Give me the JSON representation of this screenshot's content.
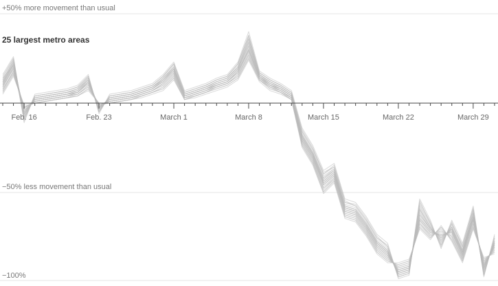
{
  "chart_data": {
    "type": "line",
    "title": "25 largest metro areas",
    "x_start": "2020-02-14",
    "x_end": "2020-03-31",
    "ylim": [
      -100,
      50
    ],
    "reference_lines": [
      {
        "value": 50,
        "label": "+50% more movement than usual"
      },
      {
        "value": -50,
        "label": "−50% less movement than usual"
      },
      {
        "value": -100,
        "label": "−100%"
      }
    ],
    "tick_labels": [
      {
        "date": "2020-02-16",
        "label": "Feb. 16"
      },
      {
        "date": "2020-02-23",
        "label": "Feb. 23"
      },
      {
        "date": "2020-03-01",
        "label": "March 1"
      },
      {
        "date": "2020-03-08",
        "label": "March 8"
      },
      {
        "date": "2020-03-15",
        "label": "March 15"
      },
      {
        "date": "2020-03-22",
        "label": "March 22"
      },
      {
        "date": "2020-03-29",
        "label": "March 29"
      }
    ],
    "dates": [
      "2020-02-14",
      "2020-02-15",
      "2020-02-16",
      "2020-02-17",
      "2020-02-18",
      "2020-02-19",
      "2020-02-20",
      "2020-02-21",
      "2020-02-22",
      "2020-02-23",
      "2020-02-24",
      "2020-02-25",
      "2020-02-26",
      "2020-02-27",
      "2020-02-28",
      "2020-02-29",
      "2020-03-01",
      "2020-03-02",
      "2020-03-03",
      "2020-03-04",
      "2020-03-05",
      "2020-03-06",
      "2020-03-07",
      "2020-03-08",
      "2020-03-09",
      "2020-03-10",
      "2020-03-11",
      "2020-03-12",
      "2020-03-13",
      "2020-03-14",
      "2020-03-15",
      "2020-03-16",
      "2020-03-17",
      "2020-03-18",
      "2020-03-19",
      "2020-03-20",
      "2020-03-21",
      "2020-03-22",
      "2020-03-23",
      "2020-03-24",
      "2020-03-25",
      "2020-03-26",
      "2020-03-27",
      "2020-03-28",
      "2020-03-29",
      "2020-03-30",
      "2020-03-31"
    ],
    "series": [
      {
        "values": [
          10,
          22,
          -5,
          2,
          3,
          4,
          5,
          6,
          12,
          -2,
          2,
          3,
          4,
          6,
          8,
          12,
          18,
          4,
          6,
          8,
          10,
          12,
          18,
          30,
          15,
          10,
          8,
          4,
          -20,
          -30,
          -45,
          -40,
          -60,
          -62,
          -70,
          -80,
          -85,
          -95,
          -93,
          -65,
          -72,
          -75,
          -72,
          -85,
          -65,
          -92,
          -80
        ]
      },
      {
        "values": [
          12,
          24,
          -8,
          3,
          4,
          5,
          6,
          8,
          14,
          -4,
          3,
          4,
          5,
          7,
          9,
          14,
          20,
          5,
          7,
          9,
          12,
          14,
          20,
          35,
          16,
          12,
          9,
          5,
          -18,
          -28,
          -42,
          -38,
          -58,
          -60,
          -68,
          -78,
          -83,
          -97,
          -95,
          -60,
          -70,
          -78,
          -70,
          -83,
          -62,
          -95,
          -78
        ]
      },
      {
        "values": [
          8,
          18,
          -3,
          1,
          2,
          3,
          4,
          5,
          10,
          -1,
          1,
          2,
          3,
          5,
          7,
          10,
          16,
          3,
          5,
          7,
          9,
          11,
          16,
          28,
          14,
          9,
          7,
          3,
          -22,
          -32,
          -48,
          -42,
          -62,
          -64,
          -72,
          -82,
          -87,
          -93,
          -91,
          -68,
          -74,
          -72,
          -75,
          -87,
          -68,
          -90,
          -82
        ]
      },
      {
        "values": [
          15,
          25,
          -10,
          4,
          5,
          6,
          7,
          9,
          15,
          -5,
          4,
          5,
          6,
          8,
          10,
          15,
          22,
          6,
          8,
          10,
          13,
          15,
          22,
          38,
          17,
          13,
          10,
          6,
          -15,
          -25,
          -40,
          -35,
          -55,
          -58,
          -66,
          -76,
          -80,
          -98,
          -96,
          -55,
          -68,
          -80,
          -68,
          -80,
          -60,
          -97,
          -75
        ]
      },
      {
        "values": [
          6,
          16,
          -2,
          0,
          1,
          2,
          3,
          4,
          8,
          0,
          0,
          1,
          2,
          4,
          6,
          8,
          14,
          2,
          4,
          6,
          8,
          10,
          14,
          25,
          13,
          8,
          6,
          2,
          -24,
          -34,
          -50,
          -44,
          -64,
          -66,
          -74,
          -84,
          -89,
          -91,
          -89,
          -70,
          -76,
          -70,
          -77,
          -89,
          -70,
          -88,
          -84
        ]
      },
      {
        "values": [
          11,
          20,
          -6,
          2,
          3,
          4,
          5,
          7,
          13,
          -3,
          2,
          3,
          4,
          6,
          8,
          13,
          19,
          4,
          6,
          8,
          11,
          13,
          19,
          32,
          15,
          11,
          8,
          4,
          -19,
          -29,
          -44,
          -39,
          -59,
          -61,
          -69,
          -79,
          -84,
          -96,
          -94,
          -62,
          -71,
          -76,
          -71,
          -84,
          -64,
          -93,
          -79
        ]
      },
      {
        "values": [
          9,
          19,
          -4,
          1,
          2,
          3,
          4,
          6,
          11,
          -2,
          1,
          2,
          3,
          5,
          7,
          11,
          17,
          3,
          5,
          7,
          10,
          12,
          17,
          29,
          14,
          10,
          7,
          3,
          -21,
          -31,
          -46,
          -41,
          -61,
          -63,
          -71,
          -81,
          -86,
          -94,
          -92,
          -66,
          -73,
          -74,
          -73,
          -86,
          -66,
          -91,
          -81
        ]
      },
      {
        "values": [
          13,
          23,
          -7,
          3,
          4,
          5,
          6,
          8,
          14,
          -4,
          3,
          4,
          5,
          7,
          9,
          14,
          21,
          5,
          7,
          9,
          12,
          14,
          21,
          36,
          16,
          12,
          9,
          5,
          -17,
          -27,
          -41,
          -37,
          -57,
          -59,
          -67,
          -77,
          -82,
          -97,
          -95,
          -58,
          -69,
          -79,
          -69,
          -82,
          -61,
          -96,
          -77
        ]
      },
      {
        "values": [
          7,
          17,
          -2,
          0,
          1,
          2,
          3,
          5,
          9,
          -1,
          0,
          1,
          2,
          4,
          6,
          9,
          15,
          2,
          4,
          6,
          9,
          11,
          15,
          26,
          13,
          9,
          6,
          2,
          -23,
          -33,
          -49,
          -43,
          -63,
          -65,
          -73,
          -83,
          -88,
          -92,
          -90,
          -69,
          -75,
          -71,
          -76,
          -88,
          -69,
          -89,
          -83
        ]
      },
      {
        "values": [
          14,
          21,
          -9,
          4,
          5,
          6,
          7,
          9,
          15,
          -5,
          4,
          5,
          6,
          8,
          10,
          15,
          22,
          6,
          8,
          10,
          13,
          15,
          22,
          37,
          17,
          13,
          10,
          6,
          -16,
          -26,
          -39,
          -36,
          -56,
          -57,
          -65,
          -75,
          -81,
          -98,
          -96,
          -56,
          -67,
          -81,
          -67,
          -81,
          -59,
          -97,
          -76
        ]
      },
      {
        "values": [
          10,
          21,
          -5,
          2,
          3,
          4,
          5,
          6,
          12,
          -2,
          2,
          3,
          4,
          6,
          8,
          12,
          18,
          4,
          6,
          8,
          10,
          12,
          18,
          31,
          15,
          10,
          8,
          4,
          -20,
          -30,
          -45,
          -40,
          -60,
          -62,
          -70,
          -80,
          -85,
          -95,
          -93,
          -64,
          -72,
          -75,
          -72,
          -85,
          -65,
          -92,
          -80
        ]
      },
      {
        "values": [
          12,
          22,
          -6,
          3,
          4,
          5,
          6,
          7,
          13,
          -3,
          3,
          4,
          5,
          7,
          9,
          13,
          19,
          5,
          7,
          9,
          11,
          13,
          19,
          33,
          16,
          11,
          9,
          5,
          -19,
          -29,
          -43,
          -38,
          -59,
          -61,
          -69,
          -79,
          -84,
          -96,
          -94,
          -61,
          -71,
          -77,
          -71,
          -84,
          -63,
          -94,
          -79
        ]
      },
      {
        "values": [
          5,
          15,
          -1,
          0,
          1,
          2,
          3,
          4,
          7,
          0,
          0,
          1,
          2,
          3,
          5,
          7,
          13,
          2,
          3,
          5,
          7,
          9,
          13,
          24,
          12,
          7,
          5,
          2,
          -25,
          -35,
          -51,
          -45,
          -65,
          -67,
          -75,
          -85,
          -90,
          -90,
          -88,
          -71,
          -77,
          -69,
          -78,
          -90,
          -71,
          -87,
          -85
        ]
      },
      {
        "values": [
          16,
          26,
          -11,
          5,
          6,
          7,
          8,
          10,
          16,
          -6,
          5,
          6,
          7,
          9,
          11,
          16,
          23,
          7,
          9,
          11,
          14,
          16,
          23,
          40,
          18,
          14,
          11,
          7,
          -14,
          -24,
          -38,
          -34,
          -54,
          -56,
          -64,
          -74,
          -79,
          -99,
          -97,
          -54,
          -66,
          -82,
          -66,
          -79,
          -58,
          -98,
          -74
        ]
      },
      {
        "values": [
          9,
          20,
          -4,
          1,
          2,
          3,
          4,
          6,
          11,
          -2,
          1,
          2,
          3,
          5,
          7,
          11,
          17,
          3,
          5,
          7,
          10,
          12,
          17,
          30,
          14,
          10,
          7,
          3,
          -21,
          -31,
          -46,
          -41,
          -61,
          -63,
          -71,
          -81,
          -86,
          -94,
          -92,
          -66,
          -73,
          -74,
          -73,
          -86,
          -66,
          -91,
          -81
        ]
      },
      {
        "values": [
          11,
          23,
          -6,
          2,
          3,
          4,
          5,
          7,
          13,
          -3,
          2,
          3,
          4,
          6,
          8,
          13,
          19,
          4,
          6,
          8,
          11,
          13,
          19,
          34,
          15,
          11,
          8,
          4,
          -19,
          -29,
          -44,
          -39,
          -59,
          -61,
          -69,
          -79,
          -84,
          -96,
          -94,
          -63,
          -71,
          -76,
          -71,
          -84,
          -64,
          -93,
          -79
        ]
      },
      {
        "values": [
          8,
          17,
          -3,
          1,
          2,
          3,
          4,
          5,
          10,
          -1,
          1,
          2,
          3,
          5,
          7,
          10,
          16,
          3,
          5,
          7,
          9,
          11,
          16,
          27,
          14,
          9,
          7,
          3,
          -22,
          -32,
          -47,
          -42,
          -62,
          -64,
          -72,
          -82,
          -87,
          -93,
          -91,
          -67,
          -74,
          -73,
          -74,
          -87,
          -67,
          -90,
          -82
        ]
      },
      {
        "values": [
          13,
          24,
          -8,
          3,
          4,
          5,
          6,
          8,
          14,
          -4,
          3,
          4,
          5,
          7,
          9,
          14,
          20,
          5,
          7,
          9,
          12,
          14,
          20,
          36,
          16,
          12,
          9,
          5,
          -18,
          -28,
          -42,
          -37,
          -58,
          -60,
          -68,
          -78,
          -83,
          -97,
          -95,
          -59,
          -70,
          -78,
          -70,
          -83,
          -62,
          -95,
          -78
        ]
      },
      {
        "values": [
          6,
          16,
          -2,
          0,
          1,
          2,
          3,
          4,
          8,
          0,
          0,
          1,
          2,
          4,
          6,
          8,
          14,
          2,
          4,
          6,
          8,
          10,
          14,
          25,
          13,
          8,
          6,
          2,
          -24,
          -34,
          -50,
          -44,
          -64,
          -66,
          -74,
          -84,
          -89,
          -91,
          -89,
          -70,
          -76,
          -70,
          -77,
          -89,
          -70,
          -88,
          -84
        ]
      },
      {
        "values": [
          10,
          19,
          -5,
          2,
          3,
          4,
          5,
          6,
          12,
          -2,
          2,
          3,
          4,
          6,
          8,
          12,
          18,
          4,
          6,
          8,
          10,
          12,
          18,
          30,
          15,
          10,
          8,
          4,
          -20,
          -30,
          -45,
          -40,
          -60,
          -62,
          -70,
          -80,
          -85,
          -95,
          -93,
          -65,
          -72,
          -75,
          -72,
          -85,
          -65,
          -92,
          -80
        ]
      },
      {
        "values": [
          12,
          21,
          -7,
          3,
          4,
          5,
          6,
          8,
          13,
          -3,
          3,
          4,
          5,
          7,
          9,
          13,
          20,
          5,
          7,
          9,
          12,
          14,
          20,
          34,
          16,
          12,
          9,
          5,
          -18,
          -28,
          -43,
          -38,
          -58,
          -60,
          -68,
          -78,
          -83,
          -96,
          -94,
          -60,
          -70,
          -77,
          -70,
          -83,
          -62,
          -94,
          -78
        ]
      },
      {
        "values": [
          7,
          18,
          -3,
          1,
          2,
          3,
          4,
          5,
          9,
          -1,
          1,
          2,
          3,
          4,
          6,
          9,
          15,
          3,
          4,
          6,
          9,
          11,
          15,
          27,
          13,
          9,
          6,
          3,
          -23,
          -33,
          -48,
          -43,
          -63,
          -65,
          -73,
          -83,
          -88,
          -92,
          -90,
          -68,
          -75,
          -72,
          -75,
          -88,
          -68,
          -89,
          -83
        ]
      },
      {
        "values": [
          14,
          25,
          -9,
          4,
          5,
          6,
          7,
          9,
          15,
          -5,
          4,
          5,
          6,
          8,
          10,
          15,
          22,
          6,
          8,
          10,
          13,
          15,
          22,
          38,
          17,
          13,
          10,
          6,
          -16,
          -26,
          -40,
          -36,
          -56,
          -58,
          -66,
          -76,
          -81,
          -98,
          -96,
          -57,
          -68,
          -80,
          -68,
          -81,
          -60,
          -97,
          -76
        ]
      },
      {
        "values": [
          9,
          20,
          -4,
          1,
          2,
          3,
          4,
          6,
          11,
          -2,
          1,
          2,
          3,
          5,
          7,
          11,
          17,
          3,
          5,
          7,
          10,
          12,
          17,
          29,
          14,
          10,
          7,
          3,
          -21,
          -31,
          -46,
          -41,
          -61,
          -63,
          -71,
          -81,
          -86,
          -94,
          -92,
          -66,
          -73,
          -74,
          -73,
          -86,
          -66,
          -91,
          -81
        ]
      },
      {
        "values": [
          11,
          22,
          -6,
          2,
          3,
          4,
          5,
          7,
          12,
          -3,
          2,
          3,
          4,
          6,
          8,
          12,
          19,
          4,
          6,
          8,
          11,
          13,
          19,
          32,
          15,
          11,
          8,
          4,
          -19,
          -29,
          -44,
          -39,
          -59,
          -61,
          -69,
          -79,
          -84,
          -95,
          -93,
          -63,
          -71,
          -76,
          -71,
          -84,
          -64,
          -93,
          -79
        ]
      }
    ]
  }
}
